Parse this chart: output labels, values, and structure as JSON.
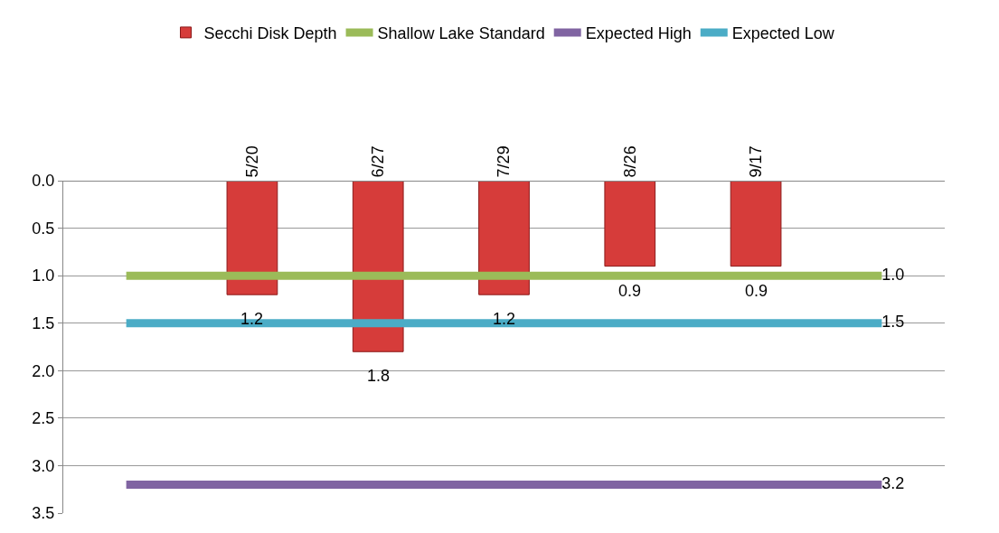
{
  "chart_data": {
    "type": "bar",
    "categories": [
      null,
      "5/20",
      "6/27",
      "7/29",
      "8/26",
      "9/17",
      null
    ],
    "series": [
      {
        "name": "Secchi Disk Depth",
        "color": "#d63c3a",
        "values": [
          null,
          1.2,
          1.8,
          1.2,
          0.9,
          0.9,
          null
        ],
        "value_labels": [
          null,
          "1.2",
          "1.8",
          "1.2",
          "0.9",
          "0.9",
          null
        ]
      },
      {
        "name": "Shallow Lake Standard",
        "type": "line",
        "color": "#9bbb59",
        "values": [
          1.0,
          1.0,
          1.0,
          1.0,
          1.0,
          1.0,
          1.0
        ],
        "value_labels": [
          null,
          null,
          null,
          null,
          null,
          null,
          "1.0"
        ]
      },
      {
        "name": "Expected High",
        "type": "line",
        "color": "#8064a2",
        "values": [
          3.2,
          3.2,
          3.2,
          3.2,
          3.2,
          3.2,
          3.2
        ],
        "value_labels": [
          null,
          null,
          null,
          null,
          null,
          null,
          "3.2"
        ]
      },
      {
        "name": "Expected Low",
        "type": "line",
        "color": "#4bacc6",
        "values": [
          1.5,
          1.5,
          1.5,
          1.5,
          1.5,
          1.5,
          1.5
        ],
        "value_labels": [
          null,
          null,
          null,
          null,
          null,
          null,
          "1.5"
        ]
      }
    ],
    "ylim": [
      3.5,
      0
    ],
    "yticks": [
      {
        "value": 0,
        "label": "0.0"
      },
      {
        "value": 0.5,
        "label": "0.5"
      },
      {
        "value": 1,
        "label": "1.0"
      },
      {
        "value": 1.5,
        "label": "1.5"
      },
      {
        "value": 2,
        "label": "2.0"
      },
      {
        "value": 2.5,
        "label": "2.5"
      },
      {
        "value": 3,
        "label": "3.0"
      },
      {
        "value": 3.5,
        "label": "3.5"
      }
    ],
    "grid": "y",
    "legend": "top",
    "marker": "none",
    "line_style": "solid"
  }
}
